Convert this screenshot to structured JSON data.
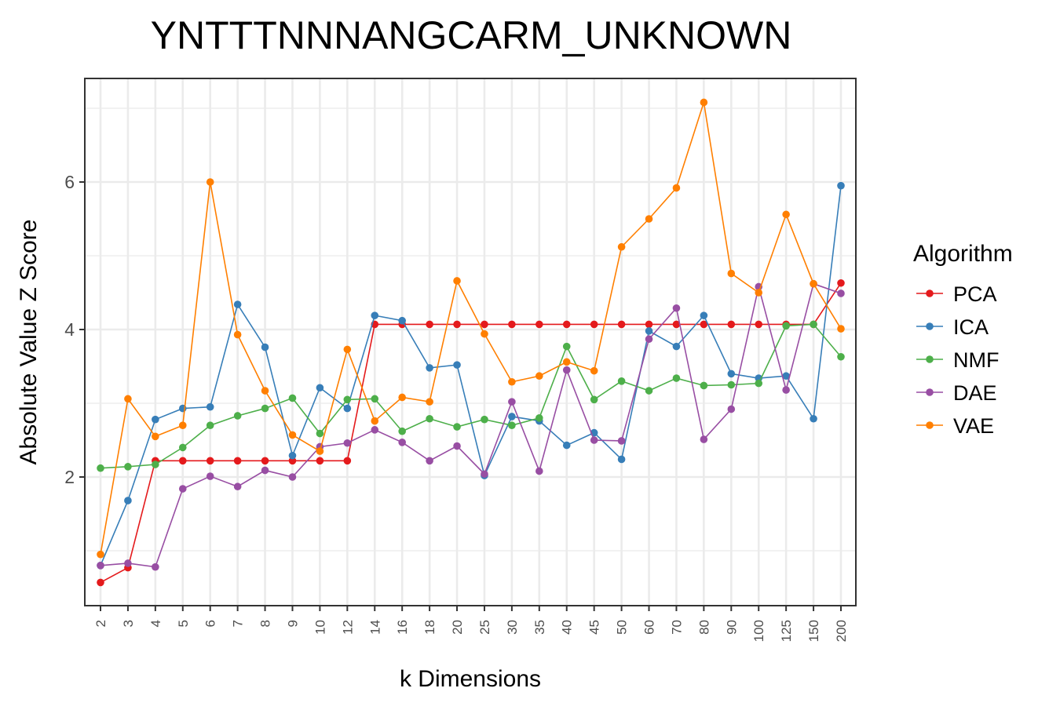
{
  "chart_data": {
    "type": "line",
    "title": "YNTTTNNNANGCARM_UNKNOWN",
    "xlabel": "k Dimensions",
    "ylabel": "Absolute Value Z Score",
    "categories": [
      "2",
      "3",
      "4",
      "5",
      "6",
      "7",
      "8",
      "9",
      "10",
      "12",
      "14",
      "16",
      "18",
      "20",
      "25",
      "30",
      "35",
      "40",
      "45",
      "50",
      "60",
      "70",
      "80",
      "90",
      "100",
      "125",
      "150",
      "200"
    ],
    "y_ticks": [
      2,
      4,
      6
    ],
    "ylim": [
      0.4,
      7.4
    ],
    "grid": true,
    "legend": {
      "title": "Algorithm",
      "position": "right"
    },
    "series": [
      {
        "name": "PCA",
        "color": "#E41A1C",
        "values": [
          0.57,
          0.77,
          2.22,
          2.22,
          2.22,
          2.22,
          2.22,
          2.22,
          2.22,
          2.22,
          4.07,
          4.07,
          4.07,
          4.07,
          4.07,
          4.07,
          4.07,
          4.07,
          4.07,
          4.07,
          4.07,
          4.07,
          4.07,
          4.07,
          4.07,
          4.07,
          4.07,
          4.63
        ]
      },
      {
        "name": "ICA",
        "color": "#377EB8",
        "values": [
          0.8,
          1.68,
          2.78,
          2.93,
          2.95,
          4.34,
          3.76,
          2.29,
          3.21,
          2.93,
          4.19,
          4.12,
          3.48,
          3.52,
          2.02,
          2.82,
          2.76,
          2.43,
          2.6,
          2.24,
          3.98,
          3.77,
          4.19,
          3.4,
          3.34,
          3.37,
          2.79,
          5.95
        ]
      },
      {
        "name": "NMF",
        "color": "#4DAF4A",
        "values": [
          2.12,
          2.14,
          2.17,
          2.4,
          2.7,
          2.83,
          2.93,
          3.07,
          2.59,
          3.05,
          3.06,
          2.62,
          2.79,
          2.68,
          2.78,
          2.7,
          2.8,
          3.77,
          3.05,
          3.3,
          3.17,
          3.34,
          3.24,
          3.25,
          3.27,
          4.05,
          4.07,
          3.63
        ]
      },
      {
        "name": "DAE",
        "color": "#984EA3",
        "values": [
          0.8,
          0.83,
          0.78,
          1.84,
          2.01,
          1.87,
          2.09,
          2.0,
          2.41,
          2.46,
          2.64,
          2.47,
          2.22,
          2.42,
          2.04,
          3.02,
          2.08,
          3.45,
          2.5,
          2.49,
          3.87,
          4.29,
          2.51,
          2.92,
          4.58,
          3.18,
          4.62,
          4.49
        ]
      },
      {
        "name": "VAE",
        "color": "#FF7F00",
        "values": [
          0.95,
          3.06,
          2.55,
          2.7,
          6.0,
          3.93,
          3.17,
          2.57,
          2.35,
          3.73,
          2.76,
          3.08,
          3.02,
          4.66,
          3.94,
          3.29,
          3.37,
          3.56,
          3.44,
          5.12,
          5.5,
          5.92,
          7.08,
          4.76,
          4.5,
          5.56,
          4.62,
          4.01
        ]
      }
    ]
  }
}
